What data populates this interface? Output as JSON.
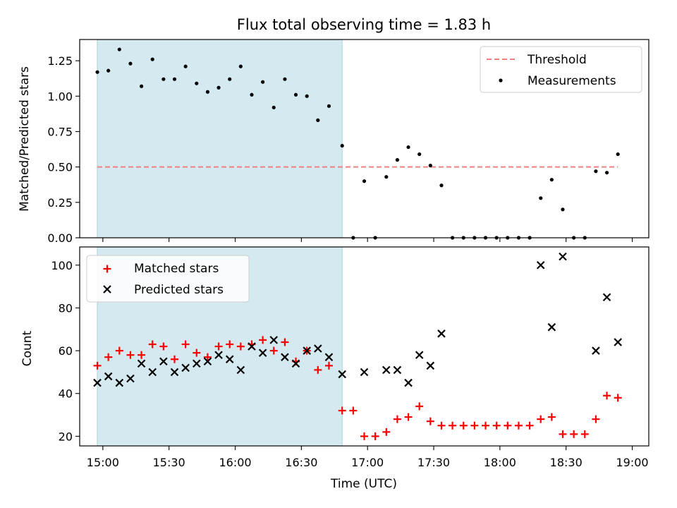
{
  "colors": {
    "shade": "#d4eaf0",
    "shade_edge": "#a8d3e0",
    "threshold": "#f08080",
    "matched": "#ff0000",
    "predicted": "#000000",
    "measurement": "#000000"
  },
  "chart_data": [
    {
      "type": "scatter",
      "title": "Flux total observing time = 1.83 h",
      "xlabel": "",
      "ylabel": "Matched/Predicted stars",
      "xlim": [
        -10.5,
        247.5
      ],
      "ylim": [
        0,
        1.4
      ],
      "x_units": "minutes after 15:00 UTC",
      "shaded_region": [
        -2.5,
        108.5
      ],
      "yticks": [
        0,
        0.25,
        0.5,
        0.75,
        1.0,
        1.25
      ],
      "ytick_labels": [
        "0.00",
        "0.25",
        "0.50",
        "0.75",
        "1.00",
        "1.25"
      ],
      "threshold": {
        "label": "Threshold",
        "value": 0.5,
        "x_range": [
          -2.5,
          233.5
        ]
      },
      "legend": {
        "position": "top-right",
        "entries": [
          "Threshold",
          "Measurements"
        ]
      },
      "series": [
        {
          "name": "Measurements",
          "x": [
            -2.5,
            2.5,
            7.5,
            12.5,
            17.5,
            22.5,
            27.5,
            32.5,
            37.5,
            42.5,
            47.5,
            52.5,
            57.5,
            62.5,
            67.5,
            72.5,
            77.5,
            82.5,
            87.5,
            92.5,
            97.5,
            102.5,
            108.5,
            113.5,
            118.5,
            123.5,
            128.5,
            133.5,
            138.5,
            143.5,
            148.5,
            153.5,
            158.5,
            163.5,
            168.5,
            173.5,
            178.5,
            183.5,
            188.5,
            193.5,
            198.5,
            203.5,
            208.5,
            213.5,
            218.5,
            223.5,
            228.5,
            233.5
          ],
          "y": [
            1.17,
            1.18,
            1.33,
            1.23,
            1.07,
            1.26,
            1.12,
            1.12,
            1.21,
            1.09,
            1.03,
            1.06,
            1.12,
            1.21,
            1.01,
            1.1,
            0.92,
            1.12,
            1.01,
            1.0,
            0.83,
            0.93,
            0.65,
            0.0,
            0.4,
            0.0,
            0.43,
            0.55,
            0.64,
            0.59,
            0.51,
            0.37,
            0.0,
            0.0,
            0.0,
            0.0,
            0.0,
            0.0,
            0.0,
            0.0,
            0.28,
            0.41,
            0.2,
            0.0,
            0.0,
            0.47,
            0.46,
            0.59
          ]
        }
      ]
    },
    {
      "type": "scatter",
      "title": "",
      "xlabel": "Time (UTC)",
      "ylabel": "Count",
      "xlim": [
        -10.5,
        247.5
      ],
      "ylim": [
        15.5,
        108.5
      ],
      "x_units": "minutes after 15:00 UTC",
      "shaded_region": [
        -2.5,
        108.5
      ],
      "xticks": [
        0,
        30,
        60,
        90,
        120,
        150,
        180,
        210,
        240
      ],
      "xtick_labels": [
        "15:00",
        "15:30",
        "16:00",
        "16:30",
        "17:00",
        "17:30",
        "18:00",
        "18:30",
        "19:00"
      ],
      "yticks": [
        20,
        40,
        60,
        80,
        100
      ],
      "ytick_labels": [
        "20",
        "40",
        "60",
        "80",
        "100"
      ],
      "legend": {
        "position": "top-left",
        "entries": [
          "Matched stars",
          "Predicted stars"
        ]
      },
      "series": [
        {
          "name": "Matched stars",
          "marker": "plus",
          "x": [
            -2.5,
            2.5,
            7.5,
            12.5,
            17.5,
            22.5,
            27.5,
            32.5,
            37.5,
            42.5,
            47.5,
            52.5,
            57.5,
            62.5,
            67.5,
            72.5,
            77.5,
            82.5,
            87.5,
            92.5,
            97.5,
            102.5,
            108.5,
            113.5,
            118.5,
            123.5,
            128.5,
            133.5,
            138.5,
            143.5,
            148.5,
            153.5,
            158.5,
            163.5,
            168.5,
            173.5,
            178.5,
            183.5,
            188.5,
            193.5,
            198.5,
            203.5,
            208.5,
            213.5,
            218.5,
            223.5,
            228.5,
            233.5
          ],
          "y": [
            53,
            57,
            60,
            58,
            58,
            63,
            62,
            56,
            63,
            59,
            57,
            62,
            63,
            62,
            63,
            65,
            60,
            64,
            55,
            60,
            51,
            53,
            32,
            32,
            20,
            20,
            22,
            28,
            29,
            34,
            27,
            25,
            25,
            25,
            25,
            25,
            25,
            25,
            25,
            25,
            28,
            29,
            21,
            21,
            21,
            28,
            39,
            38
          ]
        },
        {
          "name": "Predicted stars",
          "marker": "x",
          "x": [
            -2.5,
            2.5,
            7.5,
            12.5,
            17.5,
            22.5,
            27.5,
            32.5,
            37.5,
            42.5,
            47.5,
            52.5,
            57.5,
            62.5,
            67.5,
            72.5,
            77.5,
            82.5,
            87.5,
            92.5,
            97.5,
            102.5,
            108.5,
            118.5,
            128.5,
            133.5,
            138.5,
            143.5,
            148.5,
            153.5,
            198.5,
            203.5,
            208.5,
            223.5,
            228.5,
            233.5
          ],
          "y": [
            45,
            48,
            45,
            47,
            54,
            50,
            55,
            50,
            52,
            54,
            55,
            58,
            56,
            51,
            62,
            59,
            65,
            57,
            54,
            60,
            61,
            57,
            49,
            50,
            51,
            51,
            45,
            58,
            53,
            68,
            100,
            71,
            104,
            60,
            85,
            64
          ]
        }
      ]
    }
  ]
}
